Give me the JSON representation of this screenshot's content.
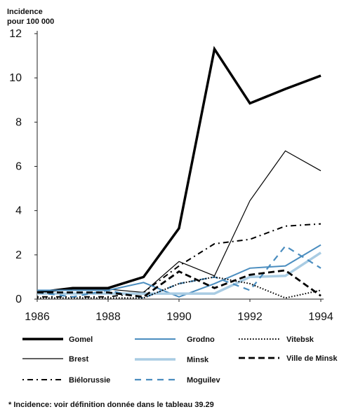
{
  "chart_data": {
    "type": "line",
    "ylabel": "Incidence\npour 100 000",
    "x": [
      1986,
      1987,
      1988,
      1989,
      1990,
      1991,
      1992,
      1993,
      1994
    ],
    "x_ticks": [
      "1986",
      "1988",
      "1990",
      "1992",
      "1994"
    ],
    "y_ticks": [
      "0",
      "2",
      "4",
      "6",
      "8",
      "10",
      "12"
    ],
    "ylim": [
      0,
      12
    ],
    "grid": false,
    "legend_position": "bottom",
    "series": [
      {
        "name": "Gomel",
        "values": [
          0.3,
          0.5,
          0.5,
          1.0,
          3.2,
          11.3,
          8.85,
          9.5,
          10.1
        ],
        "color": "#000000",
        "style": "solid-thick"
      },
      {
        "name": "Brest",
        "values": [
          0.3,
          0.45,
          0.45,
          0.3,
          1.7,
          1.05,
          4.45,
          6.7,
          5.8
        ],
        "color": "#000000",
        "style": "solid-thin"
      },
      {
        "name": "Biélorussie",
        "values": [
          0.1,
          0.1,
          0.1,
          0.3,
          1.5,
          2.5,
          2.7,
          3.3,
          3.4
        ],
        "color": "#000000",
        "style": "dashdot"
      },
      {
        "name": "Grodno",
        "values": [
          0.4,
          0.4,
          0.4,
          0.75,
          0.1,
          0.7,
          1.4,
          1.5,
          2.45
        ],
        "color": "#4a8dbf",
        "style": "solid-medium"
      },
      {
        "name": "Minsk",
        "values": [
          0.25,
          0.25,
          0.25,
          0.25,
          0.25,
          0.25,
          1.0,
          1.05,
          2.1
        ],
        "color": "#a9cce3",
        "style": "solid-thick"
      },
      {
        "name": "Moguilev",
        "values": [
          0.3,
          0.1,
          0.4,
          0.05,
          0.7,
          1.0,
          0.4,
          2.4,
          1.4
        ],
        "color": "#4a8dbf",
        "style": "dashed-long"
      },
      {
        "name": "Vitebsk",
        "values": [
          0.05,
          0.05,
          0.05,
          0.05,
          0.7,
          1.0,
          0.7,
          0.05,
          0.4
        ],
        "color": "#000000",
        "style": "dotted"
      },
      {
        "name": "Ville de Minsk",
        "values": [
          0.3,
          0.3,
          0.3,
          0.1,
          1.25,
          0.5,
          1.1,
          1.3,
          0.15
        ],
        "color": "#000000",
        "style": "dashed-thick"
      }
    ]
  },
  "footnote": "* Incidence: voir définition donnée dans le tableau 39.29"
}
